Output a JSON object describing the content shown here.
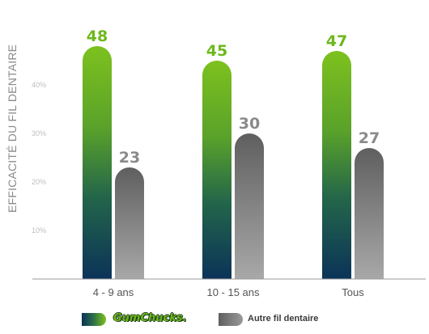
{
  "chart_data": {
    "type": "bar",
    "title": "",
    "xlabel": "",
    "ylabel": "EFFICACITÉ DU FIL DENTAIRE",
    "categories": [
      "4 - 9 ans",
      "10 - 15 ans",
      "Tous"
    ],
    "series": [
      {
        "name": "GumChucks",
        "values": [
          48,
          45,
          47
        ],
        "label_color": "#6db81c"
      },
      {
        "name": "Autre fil dentaire",
        "values": [
          23,
          30,
          27
        ],
        "label_color": "#8a8a8a"
      }
    ],
    "yticks": [
      {
        "value": 10,
        "label": "10%"
      },
      {
        "value": 20,
        "label": "20%"
      },
      {
        "value": 30,
        "label": "30%"
      },
      {
        "value": 40,
        "label": "40%"
      }
    ],
    "ylim": [
      0,
      50
    ],
    "grid": true,
    "legend": "bottom-center",
    "colors": {
      "gum_top": "#7dc11e",
      "gum_bottom": "#0b3358",
      "other_top": "#5f5f5f",
      "other_bottom": "#a8a8a8",
      "tick": "#bdbdbd",
      "category": "#555555"
    }
  },
  "legend": {
    "gum_label": "GumChucks.",
    "other_label": "Autre fil dentaire"
  }
}
